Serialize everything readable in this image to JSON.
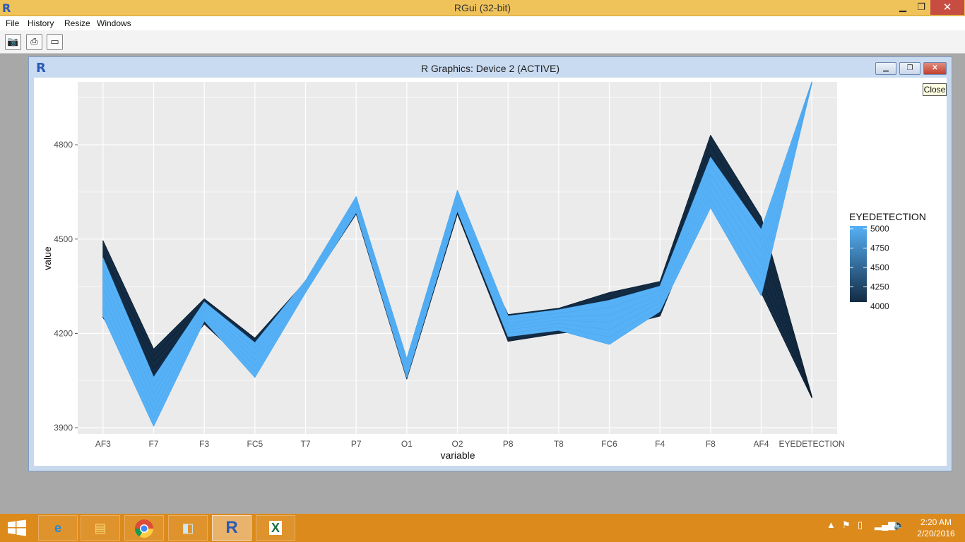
{
  "app": {
    "title": "RGui (32-bit)",
    "icon": "r-logo"
  },
  "window_controls": {
    "minimize": "▁",
    "maximize": "❐",
    "close": "✕"
  },
  "menu": [
    "File",
    "History",
    "Resize",
    "Windows"
  ],
  "toolbar": {
    "icons": [
      "camera-icon",
      "printer-icon",
      "window-icon"
    ]
  },
  "graphics_window": {
    "title": "R Graphics: Device 2 (ACTIVE)",
    "close_tooltip": "Close"
  },
  "colors": {
    "titlebar": "#f0c35a",
    "taskbar": "#dd8a1c",
    "low": "#132b43",
    "high": "#56b1f7",
    "panel": "#ebebeb"
  },
  "chart_data": {
    "type": "line",
    "xlabel": "variable",
    "ylabel": "value",
    "categories": [
      "AF3",
      "F7",
      "F3",
      "FC5",
      "T7",
      "P7",
      "O1",
      "O2",
      "P8",
      "T8",
      "FC6",
      "F4",
      "F8",
      "AF4",
      "EYEDETECTION"
    ],
    "ylim": [
      3880,
      5000
    ],
    "yticks": [
      "3900",
      "4200",
      "4500",
      "4800"
    ],
    "grid": true,
    "legend": {
      "title": "EYEDETECTION",
      "labels": [
        "5000",
        "4750",
        "4500",
        "4250",
        "4000"
      ],
      "placement": "right"
    },
    "series": [
      {
        "color": "#132b43",
        "upper": [
          4495,
          4150,
          4310,
          4185,
          4365,
          4630,
          4110,
          4600,
          4260,
          4280,
          4330,
          4365,
          4830,
          4570,
          4000
        ],
        "lower": [
          4250,
          4030,
          4230,
          4080,
          4335,
          4580,
          4055,
          4580,
          4175,
          4200,
          4215,
          4255,
          4650,
          4330,
          3995
        ]
      },
      {
        "color": "#56b1f7",
        "upper": [
          4440,
          4060,
          4300,
          4170,
          4368,
          4635,
          4120,
          4655,
          4255,
          4275,
          4305,
          4350,
          4760,
          4530,
          5000
        ],
        "lower": [
          4255,
          3905,
          4240,
          4060,
          4330,
          4585,
          4060,
          4590,
          4190,
          4210,
          4165,
          4270,
          4600,
          4320,
          4995
        ]
      }
    ]
  },
  "taskbar": {
    "apps": [
      "internet-explorer-icon",
      "file-explorer-icon",
      "chrome-icon",
      "notepad-icon",
      "r-icon",
      "excel-icon"
    ],
    "time": "2:20 AM",
    "date": "2/20/2016"
  }
}
